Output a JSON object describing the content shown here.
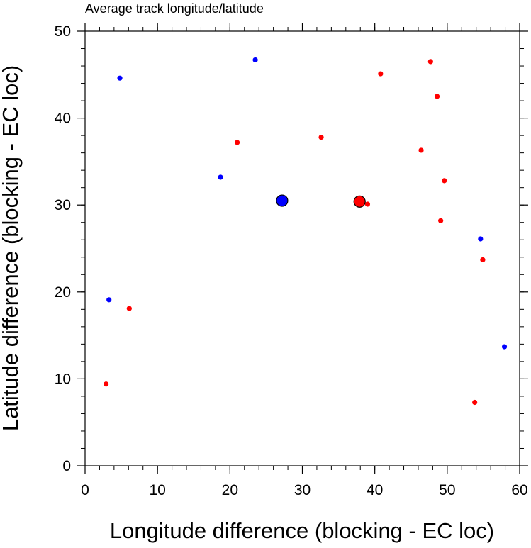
{
  "chart_data": {
    "type": "scatter",
    "title": "Average track longitude/latitude",
    "xlabel": "Longitude difference (blocking - EC loc)",
    "ylabel": "Latitude difference (blocking - EC loc)",
    "xlim": [
      0,
      60
    ],
    "ylim": [
      0,
      50
    ],
    "xticks": [
      0,
      10,
      20,
      30,
      40,
      50,
      60
    ],
    "yticks": [
      0,
      10,
      20,
      30,
      40,
      50
    ],
    "grid": false,
    "series": [
      {
        "color": "#0000ff",
        "points": [
          {
            "x": 4.8,
            "y": 44.6
          },
          {
            "x": 23.5,
            "y": 46.7
          },
          {
            "x": 18.7,
            "y": 33.2
          },
          {
            "x": 3.3,
            "y": 19.1
          },
          {
            "x": 54.6,
            "y": 26.1
          },
          {
            "x": 57.9,
            "y": 13.7
          }
        ],
        "mean": {
          "x": 27.2,
          "y": 30.5
        }
      },
      {
        "color": "#ff0000",
        "points": [
          {
            "x": 40.8,
            "y": 45.1
          },
          {
            "x": 47.7,
            "y": 46.5
          },
          {
            "x": 48.6,
            "y": 42.5
          },
          {
            "x": 21.0,
            "y": 37.2
          },
          {
            "x": 32.6,
            "y": 37.8
          },
          {
            "x": 46.4,
            "y": 36.3
          },
          {
            "x": 49.6,
            "y": 32.8
          },
          {
            "x": 39.0,
            "y": 30.1
          },
          {
            "x": 49.1,
            "y": 28.2
          },
          {
            "x": 54.9,
            "y": 23.7
          },
          {
            "x": 6.1,
            "y": 18.1
          },
          {
            "x": 2.9,
            "y": 9.4
          },
          {
            "x": 53.8,
            "y": 7.3
          }
        ],
        "mean": {
          "x": 37.9,
          "y": 30.4
        }
      }
    ]
  }
}
